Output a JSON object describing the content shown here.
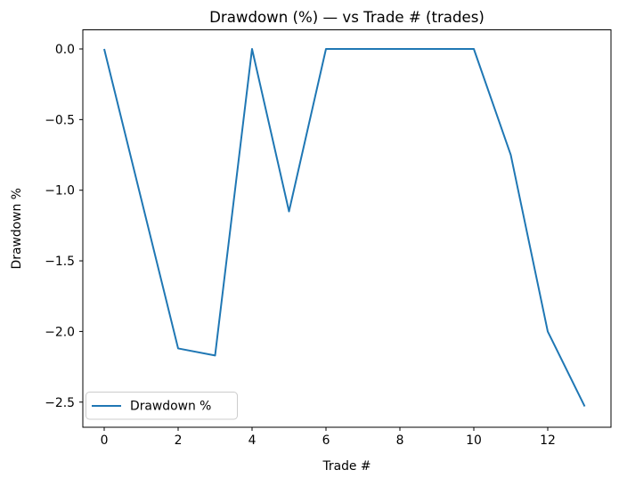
{
  "chart_data": {
    "type": "line",
    "title": "Drawdown (%) — vs Trade # (trades)",
    "xlabel": "Trade #",
    "ylabel": "Drawdown %",
    "x": [
      0,
      1,
      2,
      3,
      4,
      5,
      6,
      7,
      8,
      9,
      10,
      11,
      12,
      13
    ],
    "series": [
      {
        "name": "Drawdown %",
        "color": "#1f77b4",
        "values": [
          0.0,
          -1.06,
          -2.12,
          -2.17,
          0.0,
          -1.15,
          0.0,
          0.0,
          0.0,
          0.0,
          0.0,
          -0.75,
          -2.0,
          -2.53
        ]
      }
    ],
    "xticks": [
      0,
      2,
      4,
      6,
      8,
      10,
      12
    ],
    "xtick_labels": [
      "0",
      "2",
      "4",
      "6",
      "8",
      "10",
      "12"
    ],
    "yticks": [
      0.0,
      -0.5,
      -1.0,
      -1.5,
      -2.0,
      -2.5
    ],
    "ytick_labels": [
      "0.0",
      "−0.5",
      "−1.0",
      "−1.5",
      "−2.0",
      "−2.5"
    ],
    "xlim": [
      -0.578,
      13.711
    ],
    "ylim": [
      -2.678,
      0.1355
    ],
    "grid": false,
    "legend": {
      "position": "lower left",
      "entries": [
        "Drawdown %"
      ]
    }
  },
  "colors": {
    "line": "#1f77b4",
    "text": "#000000",
    "spine": "#000000",
    "legend_border": "#cccccc",
    "background": "#ffffff"
  }
}
